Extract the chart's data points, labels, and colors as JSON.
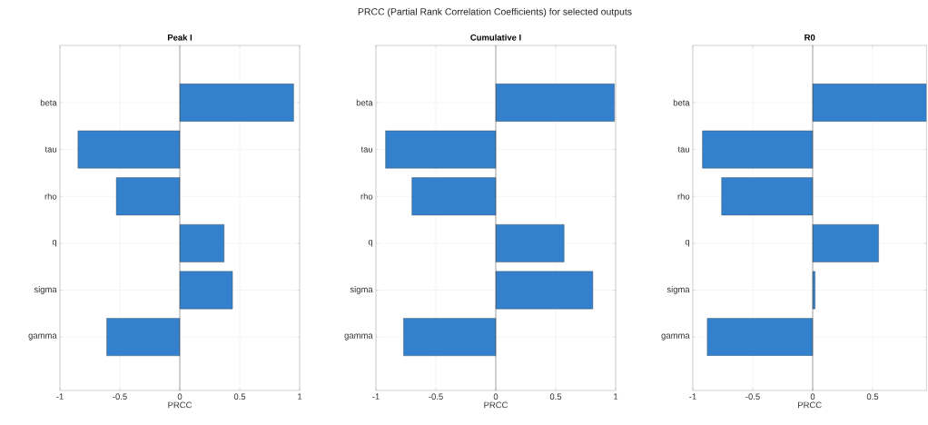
{
  "chart_data": [
    {
      "type": "bar",
      "orientation": "horizontal",
      "title": "Peak I",
      "xlabel": "PRCC",
      "annotations": [
        "PRCC (Partial Rank Correlation Coefficients) for selected outputs"
      ],
      "categories": [
        "beta",
        "tau",
        "rho",
        "q",
        "sigma",
        "gamma"
      ],
      "values": [
        0.95,
        -0.85,
        -0.53,
        0.37,
        0.44,
        -0.61
      ],
      "color": "#3380cc",
      "xlim": [
        -1,
        1
      ],
      "xticks": [
        -1,
        -0.5,
        0,
        0.5,
        1
      ],
      "grid": true
    },
    {
      "type": "bar",
      "orientation": "horizontal",
      "title": "Cumulative I",
      "xlabel": "PRCC",
      "categories": [
        "beta",
        "tau",
        "rho",
        "q",
        "sigma",
        "gamma"
      ],
      "values": [
        0.99,
        -0.92,
        -0.7,
        0.57,
        0.81,
        -0.77
      ],
      "color": "#3380cc",
      "xlim": [
        -1,
        1
      ],
      "xticks": [
        -1,
        -0.5,
        0,
        0.5,
        1
      ],
      "grid": true
    },
    {
      "type": "bar",
      "orientation": "horizontal",
      "title": "R0",
      "xlabel": "PRCC",
      "categories": [
        "beta",
        "tau",
        "rho",
        "q",
        "sigma",
        "gamma"
      ],
      "values": [
        0.95,
        -0.92,
        -0.76,
        0.55,
        0.02,
        -0.88
      ],
      "color": "#3380cc",
      "xlim": [
        -1,
        0.95
      ],
      "xticks": [
        -1,
        -0.5,
        0,
        0.5
      ],
      "grid": true
    }
  ]
}
